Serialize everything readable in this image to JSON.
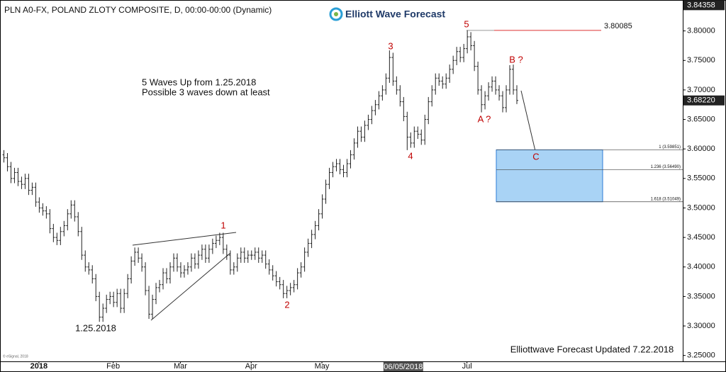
{
  "chart_data": {
    "type": "ohlc",
    "title": "PLN A0-FX, POLAND ZLOTY COMPOSITE, D, 00:00-00:00 (Dynamic)",
    "logo": "Elliott Wave Forecast",
    "annotations": [
      "5 Waves Up from 1.25.2018",
      "Possible 3 waves down at least",
      "1.25.2018"
    ],
    "footer": "Elliottwave Forecast Updated 7.22.2018",
    "copyright": "© eSignal, 2018",
    "waves": [
      "1",
      "2",
      "3",
      "4",
      "5",
      "A ?",
      "B ?",
      "C"
    ],
    "bar_color": "#222222",
    "ylim": [
      3.24,
      3.85
    ],
    "yticks": [
      {
        "value": 3.25,
        "label": "3.25000"
      },
      {
        "value": 3.3,
        "label": "3.30000"
      },
      {
        "value": 3.35,
        "label": "3.35000"
      },
      {
        "value": 3.4,
        "label": "3.40000"
      },
      {
        "value": 3.45,
        "label": "3.45000"
      },
      {
        "value": 3.5,
        "label": "3.50000"
      },
      {
        "value": 3.55,
        "label": "3.55000"
      },
      {
        "value": 3.6,
        "label": "3.60000"
      },
      {
        "value": 3.65,
        "label": "3.65000"
      },
      {
        "value": 3.7,
        "label": "3.70000"
      },
      {
        "value": 3.75,
        "label": "3.75000"
      },
      {
        "value": 3.8,
        "label": "3.80000"
      }
    ],
    "xlim": [
      -1,
      192
    ],
    "xticks": [
      {
        "value": 10,
        "label": "2018"
      },
      {
        "value": 31,
        "label": "Feb"
      },
      {
        "value": 50,
        "label": "Mar"
      },
      {
        "value": 70,
        "label": "Apr"
      },
      {
        "value": 90,
        "label": "May"
      },
      {
        "value": 131,
        "label": "Jul"
      }
    ],
    "x_cursor": {
      "value": 113,
      "label": "06/05/2018"
    },
    "price_markers": [
      3.84358,
      {
        "value": 3.6822,
        "label": "3.68220"
      }
    ],
    "level": 3.80085,
    "fib_levels": [
      {
        "value": 3.59851,
        "label": "1 (3.59851)"
      },
      {
        "value": 3.5649,
        "label": "1.236 (3.56490)"
      },
      {
        "value": 3.51049,
        "label": "1.618 (3.51049)"
      }
    ],
    "fib_color": "#a9d3f5",
    "bars": [
      [
        3.59,
        3.598,
        3.577,
        3.585
      ],
      [
        3.585,
        3.593,
        3.562,
        3.57
      ],
      [
        3.57,
        3.578,
        3.542,
        3.55
      ],
      [
        3.55,
        3.568,
        3.542,
        3.56
      ],
      [
        3.56,
        3.568,
        3.537,
        3.545
      ],
      [
        3.545,
        3.553,
        3.532,
        3.54
      ],
      [
        3.54,
        3.558,
        3.532,
        3.55
      ],
      [
        3.55,
        3.558,
        3.522,
        3.53
      ],
      [
        3.53,
        3.543,
        3.522,
        3.535
      ],
      [
        3.535,
        3.543,
        3.502,
        3.51
      ],
      [
        3.51,
        3.518,
        3.492,
        3.5
      ],
      [
        3.5,
        3.508,
        3.487,
        3.495
      ],
      [
        3.495,
        3.503,
        3.482,
        3.49
      ],
      [
        3.49,
        3.498,
        3.457,
        3.465
      ],
      [
        3.465,
        3.473,
        3.442,
        3.45
      ],
      [
        3.45,
        3.458,
        3.437,
        3.445
      ],
      [
        3.445,
        3.468,
        3.437,
        3.46
      ],
      [
        3.46,
        3.478,
        3.452,
        3.47
      ],
      [
        3.47,
        3.498,
        3.462,
        3.49
      ],
      [
        3.49,
        3.513,
        3.482,
        3.505
      ],
      [
        3.505,
        3.513,
        3.477,
        3.485
      ],
      [
        3.485,
        3.493,
        3.452,
        3.46
      ],
      [
        3.46,
        3.468,
        3.412,
        3.42
      ],
      [
        3.42,
        3.428,
        3.392,
        3.4
      ],
      [
        3.4,
        3.408,
        3.387,
        3.395
      ],
      [
        3.395,
        3.403,
        3.372,
        3.38
      ],
      [
        3.38,
        3.388,
        3.342,
        3.35
      ],
      [
        3.35,
        3.358,
        3.307,
        3.315
      ],
      [
        3.315,
        3.338,
        3.307,
        3.33
      ],
      [
        3.33,
        3.353,
        3.322,
        3.345
      ],
      [
        3.345,
        3.358,
        3.337,
        3.35
      ],
      [
        3.35,
        3.358,
        3.332,
        3.34
      ],
      [
        3.34,
        3.363,
        3.332,
        3.355
      ],
      [
        3.355,
        3.363,
        3.322,
        3.33
      ],
      [
        3.33,
        3.363,
        3.322,
        3.355
      ],
      [
        3.355,
        3.388,
        3.347,
        3.38
      ],
      [
        3.38,
        3.418,
        3.372,
        3.41
      ],
      [
        3.41,
        3.433,
        3.402,
        3.425
      ],
      [
        3.425,
        3.433,
        3.407,
        3.415
      ],
      [
        3.415,
        3.423,
        3.392,
        3.4
      ],
      [
        3.4,
        3.408,
        3.352,
        3.36
      ],
      [
        3.36,
        3.368,
        3.312,
        3.32
      ],
      [
        3.32,
        3.353,
        3.312,
        3.345
      ],
      [
        3.345,
        3.373,
        3.337,
        3.365
      ],
      [
        3.365,
        3.378,
        3.357,
        3.37
      ],
      [
        3.37,
        3.398,
        3.362,
        3.39
      ],
      [
        3.39,
        3.398,
        3.372,
        3.38
      ],
      [
        3.38,
        3.408,
        3.372,
        3.4
      ],
      [
        3.4,
        3.423,
        3.392,
        3.415
      ],
      [
        3.415,
        3.423,
        3.392,
        3.4
      ],
      [
        3.4,
        3.408,
        3.382,
        3.39
      ],
      [
        3.39,
        3.403,
        3.382,
        3.395
      ],
      [
        3.395,
        3.408,
        3.387,
        3.4
      ],
      [
        3.4,
        3.423,
        3.392,
        3.415
      ],
      [
        3.415,
        3.423,
        3.397,
        3.405
      ],
      [
        3.405,
        3.428,
        3.397,
        3.42
      ],
      [
        3.42,
        3.438,
        3.412,
        3.43
      ],
      [
        3.43,
        3.438,
        3.407,
        3.415
      ],
      [
        3.415,
        3.438,
        3.407,
        3.43
      ],
      [
        3.43,
        3.448,
        3.422,
        3.44
      ],
      [
        3.44,
        3.453,
        3.432,
        3.445
      ],
      [
        3.445,
        3.458,
        3.437,
        3.45
      ],
      [
        3.45,
        3.458,
        3.422,
        3.43
      ],
      [
        3.43,
        3.438,
        3.412,
        3.42
      ],
      [
        3.42,
        3.428,
        3.387,
        3.395
      ],
      [
        3.395,
        3.408,
        3.387,
        3.4
      ],
      [
        3.4,
        3.423,
        3.392,
        3.415
      ],
      [
        3.415,
        3.433,
        3.407,
        3.425
      ],
      [
        3.425,
        3.433,
        3.407,
        3.415
      ],
      [
        3.415,
        3.428,
        3.407,
        3.42
      ],
      [
        3.42,
        3.428,
        3.412,
        3.42
      ],
      [
        3.42,
        3.433,
        3.412,
        3.425
      ],
      [
        3.425,
        3.433,
        3.407,
        3.415
      ],
      [
        3.415,
        3.428,
        3.407,
        3.42
      ],
      [
        3.42,
        3.428,
        3.397,
        3.405
      ],
      [
        3.405,
        3.413,
        3.387,
        3.395
      ],
      [
        3.395,
        3.403,
        3.377,
        3.385
      ],
      [
        3.385,
        3.393,
        3.367,
        3.375
      ],
      [
        3.375,
        3.383,
        3.362,
        3.37
      ],
      [
        3.37,
        3.378,
        3.347,
        3.355
      ],
      [
        3.355,
        3.368,
        3.347,
        3.36
      ],
      [
        3.36,
        3.373,
        3.352,
        3.365
      ],
      [
        3.365,
        3.378,
        3.357,
        3.37
      ],
      [
        3.37,
        3.398,
        3.362,
        3.39
      ],
      [
        3.39,
        3.408,
        3.382,
        3.4
      ],
      [
        3.4,
        3.433,
        3.392,
        3.425
      ],
      [
        3.425,
        3.448,
        3.417,
        3.44
      ],
      [
        3.44,
        3.463,
        3.432,
        3.455
      ],
      [
        3.455,
        3.478,
        3.447,
        3.47
      ],
      [
        3.47,
        3.498,
        3.462,
        3.49
      ],
      [
        3.49,
        3.523,
        3.482,
        3.515
      ],
      [
        3.515,
        3.548,
        3.507,
        3.54
      ],
      [
        3.54,
        3.568,
        3.532,
        3.56
      ],
      [
        3.56,
        3.578,
        3.552,
        3.57
      ],
      [
        3.57,
        3.583,
        3.562,
        3.575
      ],
      [
        3.575,
        3.583,
        3.557,
        3.565
      ],
      [
        3.565,
        3.573,
        3.552,
        3.56
      ],
      [
        3.56,
        3.583,
        3.552,
        3.575
      ],
      [
        3.575,
        3.598,
        3.567,
        3.59
      ],
      [
        3.59,
        3.618,
        3.582,
        3.61
      ],
      [
        3.61,
        3.638,
        3.602,
        3.63
      ],
      [
        3.63,
        3.638,
        3.612,
        3.62
      ],
      [
        3.62,
        3.648,
        3.612,
        3.64
      ],
      [
        3.64,
        3.658,
        3.632,
        3.65
      ],
      [
        3.65,
        3.673,
        3.642,
        3.665
      ],
      [
        3.665,
        3.683,
        3.657,
        3.675
      ],
      [
        3.675,
        3.698,
        3.667,
        3.69
      ],
      [
        3.69,
        3.708,
        3.682,
        3.7
      ],
      [
        3.7,
        3.728,
        3.692,
        3.72
      ],
      [
        3.72,
        3.767,
        3.712,
        3.755
      ],
      [
        3.755,
        3.763,
        3.707,
        3.715
      ],
      [
        3.715,
        3.723,
        3.692,
        3.7
      ],
      [
        3.7,
        3.708,
        3.672,
        3.68
      ],
      [
        3.68,
        3.688,
        3.647,
        3.655
      ],
      [
        3.655,
        3.663,
        3.598,
        3.62
      ],
      [
        3.62,
        3.628,
        3.602,
        3.61
      ],
      [
        3.61,
        3.638,
        3.602,
        3.63
      ],
      [
        3.63,
        3.638,
        3.617,
        3.625
      ],
      [
        3.625,
        3.633,
        3.607,
        3.615
      ],
      [
        3.615,
        3.658,
        3.607,
        3.65
      ],
      [
        3.65,
        3.688,
        3.642,
        3.68
      ],
      [
        3.68,
        3.708,
        3.672,
        3.7
      ],
      [
        3.7,
        3.728,
        3.692,
        3.72
      ],
      [
        3.72,
        3.728,
        3.707,
        3.715
      ],
      [
        3.715,
        3.723,
        3.702,
        3.71
      ],
      [
        3.71,
        3.728,
        3.702,
        3.72
      ],
      [
        3.72,
        3.743,
        3.712,
        3.735
      ],
      [
        3.735,
        3.758,
        3.727,
        3.75
      ],
      [
        3.75,
        3.773,
        3.742,
        3.765
      ],
      [
        3.765,
        3.773,
        3.747,
        3.755
      ],
      [
        3.755,
        3.778,
        3.747,
        3.77
      ],
      [
        3.77,
        3.801,
        3.762,
        3.79
      ],
      [
        3.79,
        3.798,
        3.767,
        3.775
      ],
      [
        3.775,
        3.783,
        3.732,
        3.74
      ],
      [
        3.74,
        3.748,
        3.692,
        3.7
      ],
      [
        3.7,
        3.708,
        3.662,
        3.675
      ],
      [
        3.675,
        3.698,
        3.667,
        3.69
      ],
      [
        3.69,
        3.713,
        3.682,
        3.705
      ],
      [
        3.705,
        3.723,
        3.697,
        3.715
      ],
      [
        3.715,
        3.723,
        3.692,
        3.7
      ],
      [
        3.7,
        3.708,
        3.682,
        3.69
      ],
      [
        3.69,
        3.698,
        3.662,
        3.67
      ],
      [
        3.67,
        3.708,
        3.662,
        3.7
      ],
      [
        3.7,
        3.742,
        3.692,
        3.735
      ],
      [
        3.735,
        3.743,
        3.692,
        3.7
      ],
      [
        3.7,
        3.708,
        3.676,
        3.6822
      ]
    ]
  }
}
